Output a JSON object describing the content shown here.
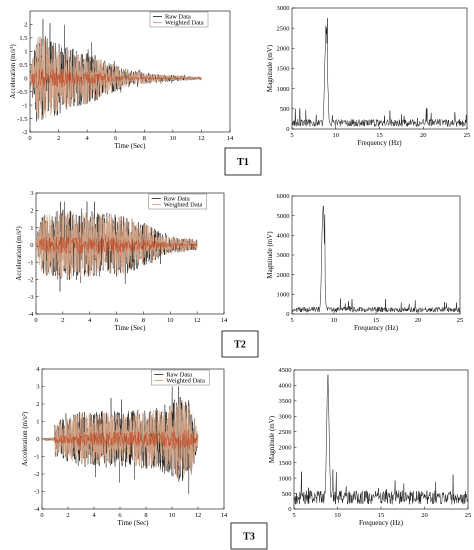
{
  "panels": [
    {
      "label": "T1",
      "time": {
        "type": "line",
        "xlabel": "Time (Sec)",
        "ylabel": "Acceleration (m/s²)",
        "xlim": [
          0,
          14
        ],
        "ylim": [
          -2,
          2.5
        ],
        "xticks": [
          "0",
          "2",
          "4",
          "6",
          "8",
          "10",
          "12",
          "14"
        ],
        "yticks": [
          "-2",
          "-1.5",
          "-1",
          "-0.5",
          "0",
          "0.5",
          "1",
          "1.5",
          "2"
        ],
        "ytick_values": [
          -2,
          -1.5,
          -1,
          -0.5,
          0,
          0.5,
          1,
          1.5,
          2
        ],
        "legend": [
          "Raw Data",
          "Weighted Data"
        ],
        "duration": 12,
        "peak": 2.2,
        "envelope": [
          [
            0,
            0.3
          ],
          [
            0.5,
            1.7
          ],
          [
            1.5,
            1.5
          ],
          [
            3,
            1.1
          ],
          [
            4.5,
            0.9
          ],
          [
            5.5,
            0.6
          ],
          [
            7,
            0.3
          ],
          [
            9,
            0.15
          ],
          [
            12,
            0.05
          ]
        ]
      },
      "freq": {
        "type": "line",
        "xlabel": "Frequency (Hz)",
        "ylabel": "Magnitude (mV)",
        "xlim": [
          5,
          25
        ],
        "ylim": [
          0,
          3000
        ],
        "xticks": [
          "5",
          "10",
          "15",
          "20",
          "25"
        ],
        "yticks": [
          "0",
          "500",
          "1000",
          "1500",
          "2000",
          "2500",
          "3000"
        ],
        "ytick_values": [
          0,
          500,
          1000,
          1500,
          2000,
          2500,
          3000
        ],
        "peak_hz": 8.9,
        "peak_value": 2750,
        "floor": 200
      }
    },
    {
      "label": "T2",
      "time": {
        "type": "line",
        "xlabel": "Time (Sec)",
        "ylabel": "Acceleration (m/s²)",
        "xlim": [
          0,
          14
        ],
        "ylim": [
          -4,
          3
        ],
        "xticks": [
          "0",
          "2",
          "4",
          "6",
          "8",
          "10",
          "12",
          "14"
        ],
        "yticks": [
          "-4",
          "-3",
          "-2",
          "-1",
          "0",
          "1",
          "2",
          "3"
        ],
        "ytick_values": [
          -4,
          -3,
          -2,
          -1,
          0,
          1,
          2,
          3
        ],
        "legend": [
          "Raw Data",
          "Weighted Data"
        ],
        "duration": 12,
        "peak": 2.5,
        "envelope": [
          [
            0,
            0.3
          ],
          [
            0.4,
            1.8
          ],
          [
            2,
            2.1
          ],
          [
            4,
            2.0
          ],
          [
            6,
            1.9
          ],
          [
            8,
            1.4
          ],
          [
            9.5,
            0.6
          ],
          [
            12,
            0.3
          ]
        ]
      },
      "freq": {
        "type": "line",
        "xlabel": "Frequency (Hz)",
        "ylabel": "Magnitude (mV)",
        "xlim": [
          5,
          25
        ],
        "ylim": [
          0,
          6000
        ],
        "xticks": [
          "5",
          "10",
          "15",
          "20",
          "25"
        ],
        "yticks": [
          "0",
          "1000",
          "2000",
          "3000",
          "4000",
          "5000",
          "6000"
        ],
        "ytick_values": [
          0,
          1000,
          2000,
          3000,
          4000,
          5000,
          6000
        ],
        "peak_hz": 8.7,
        "peak_value": 6000,
        "floor": 300
      }
    },
    {
      "label": "T3",
      "time": {
        "type": "line",
        "xlabel": "Time (Sec)",
        "ylabel": "Acceleration (m/s²)",
        "xlim": [
          0,
          14
        ],
        "ylim": [
          -4,
          4
        ],
        "xticks": [
          "0",
          "2",
          "4",
          "6",
          "8",
          "10",
          "12",
          "14"
        ],
        "yticks": [
          "-4",
          "-3",
          "-2",
          "-1",
          "0",
          "1",
          "2",
          "3",
          "4"
        ],
        "ytick_values": [
          -4,
          -3,
          -2,
          -1,
          0,
          1,
          2,
          3,
          4
        ],
        "legend": [
          "Raw Data",
          "Weighted Data"
        ],
        "duration": 12,
        "peak": 3.0,
        "envelope": [
          [
            0,
            0.05
          ],
          [
            0.9,
            0.1
          ],
          [
            1,
            1.0
          ],
          [
            3,
            1.6
          ],
          [
            6,
            1.6
          ],
          [
            9,
            1.8
          ],
          [
            10.5,
            2.5
          ],
          [
            11.5,
            2.2
          ],
          [
            12,
            0.3
          ]
        ]
      },
      "freq": {
        "type": "line",
        "xlabel": "Frequency (Hz)",
        "ylabel": "Magnitude (mV)",
        "xlim": [
          5,
          25
        ],
        "ylim": [
          0,
          4500
        ],
        "xticks": [
          "5",
          "10",
          "15",
          "20",
          "25"
        ],
        "yticks": [
          "0",
          "500",
          "1000",
          "1500",
          "2000",
          "2500",
          "3000",
          "3500",
          "4000",
          "4500"
        ],
        "ytick_values": [
          0,
          500,
          1000,
          1500,
          2000,
          2500,
          3000,
          3500,
          4000,
          4500
        ],
        "peak_hz": 8.9,
        "peak_value": 4350,
        "floor": 500
      }
    }
  ],
  "colors": {
    "raw": "#1a1a1a",
    "weighted": "#d9a98a",
    "weighted_core": "#c0421c",
    "axis": "#000000"
  }
}
